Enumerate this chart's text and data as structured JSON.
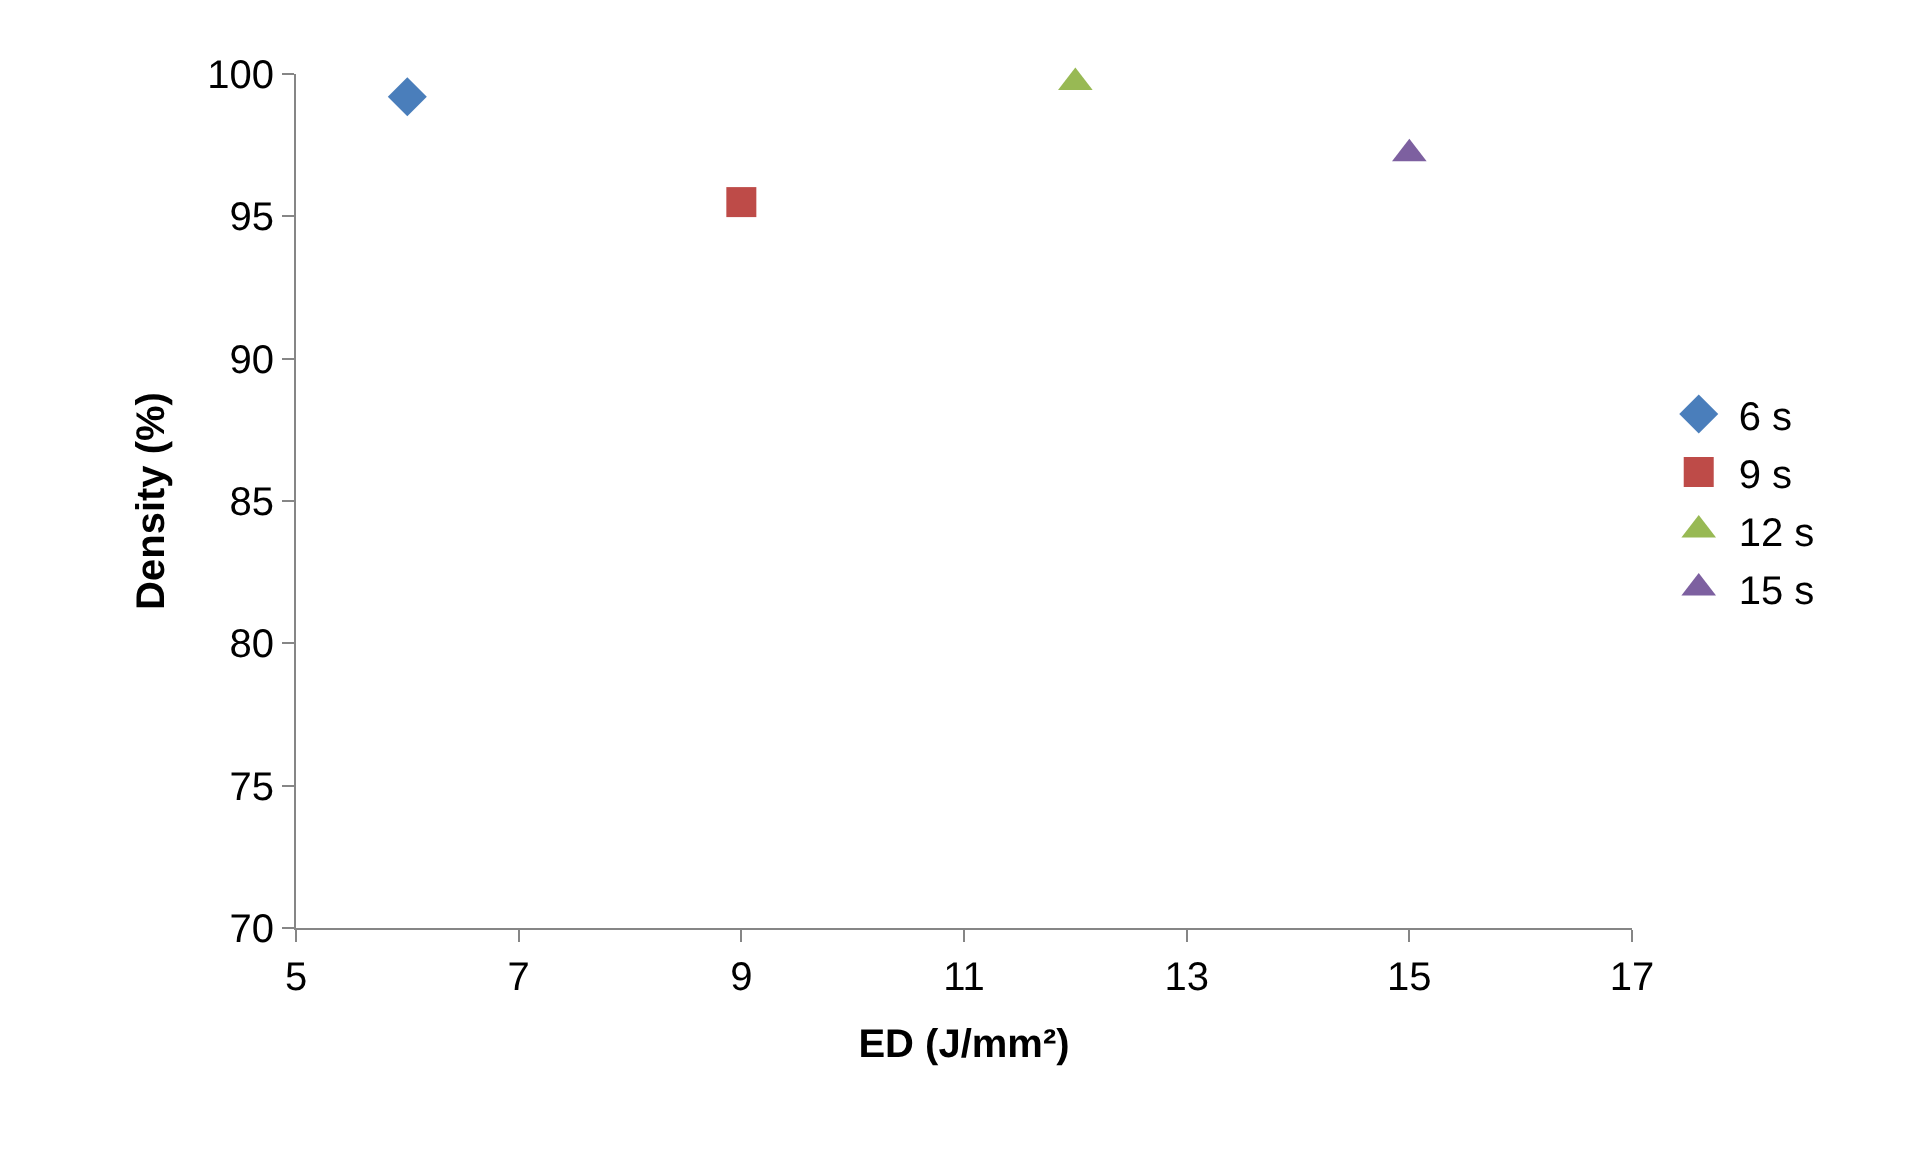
{
  "chart_data": {
    "type": "scatter",
    "xlabel": "ED (J/mm²)",
    "ylabel": "Density (%)",
    "xlim": [
      5,
      17
    ],
    "xticks": [
      5,
      7,
      9,
      11,
      13,
      15,
      17
    ],
    "ylim": [
      70,
      100
    ],
    "yticks": [
      70,
      75,
      80,
      85,
      90,
      95,
      100
    ],
    "grid": false,
    "legend": "right",
    "series": [
      {
        "name": "6 s",
        "color": "#4a7ebb",
        "marker": "diamond",
        "x": [
          6
        ],
        "values": [
          99.2
        ]
      },
      {
        "name": "9 s",
        "color": "#be4b48",
        "marker": "square",
        "x": [
          9
        ],
        "values": [
          95.5
        ]
      },
      {
        "name": "12 s",
        "color": "#98b954",
        "marker": "triangle",
        "x": [
          12
        ],
        "values": [
          99.7
        ]
      },
      {
        "name": "15 s",
        "color": "#7d60a0",
        "marker": "triangle",
        "x": [
          15
        ],
        "values": [
          97.2
        ]
      }
    ]
  }
}
